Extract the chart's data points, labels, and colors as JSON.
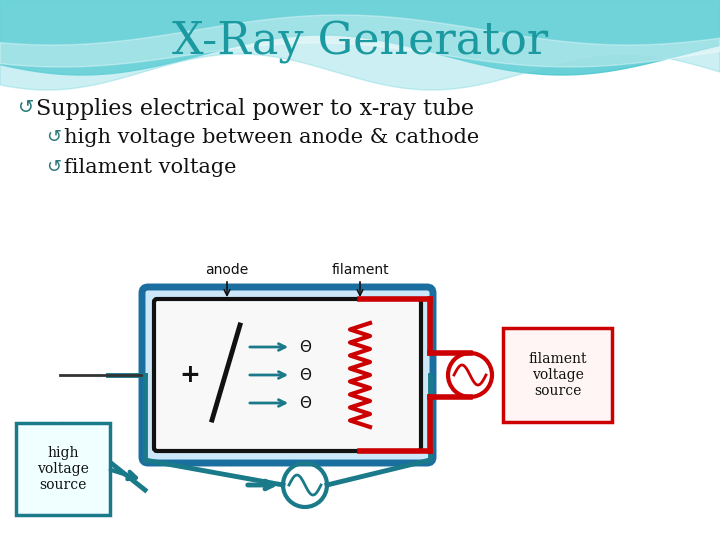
{
  "title": "X-Ray Generator",
  "title_color": "#1a9aa0",
  "title_fontsize": 32,
  "bullet_color": "#2a7a7a",
  "bullets": [
    {
      "level": 0,
      "text": "Supplies electrical power to x-ray tube"
    },
    {
      "level": 1,
      "text": "high voltage between anode & cathode"
    },
    {
      "level": 1,
      "text": "filament voltage"
    }
  ],
  "bg_color": "#ffffff",
  "tube_outer_color": "#1a6fa0",
  "tube_inner_color": "#111111",
  "filament_color": "#cc0000",
  "electron_color": "#1a7a8a",
  "hvs_box_color": "#1a7a8a",
  "hvs_text": "high\nvoltage\nsource",
  "fvs_box_color": "#cc0000",
  "fvs_text": "filament\nvoltage\nsource",
  "anode_label": "anode",
  "filament_label": "filament",
  "wave_color1": "#5cc8d0",
  "wave_color2": "#a0dde8"
}
